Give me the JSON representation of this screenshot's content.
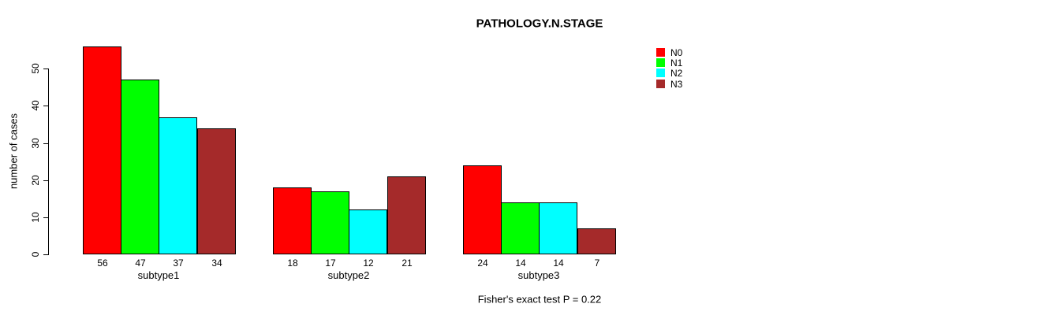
{
  "chart_data": {
    "type": "bar",
    "title": "PATHOLOGY.N.STAGE",
    "ylabel": "number of cases",
    "xlabel": "",
    "categories": [
      "subtype1",
      "subtype2",
      "subtype3"
    ],
    "series": [
      {
        "name": "N0",
        "color": "#ff0000",
        "values": [
          56,
          18,
          24
        ]
      },
      {
        "name": "N1",
        "color": "#00ff00",
        "values": [
          47,
          17,
          14
        ]
      },
      {
        "name": "N2",
        "color": "#00ffff",
        "values": [
          37,
          12,
          14
        ]
      },
      {
        "name": "N3",
        "color": "#a52a2a",
        "values": [
          34,
          21,
          7
        ]
      }
    ],
    "ylim": [
      0,
      56
    ],
    "yticks": [
      0,
      10,
      20,
      30,
      40,
      50
    ],
    "bar_value_labels": true,
    "grid": false,
    "legend_position": "top-right",
    "legend_entries": [
      "N0",
      "N1",
      "N2",
      "N3"
    ],
    "annotation": "Fisher's exact test P = 0.22"
  }
}
